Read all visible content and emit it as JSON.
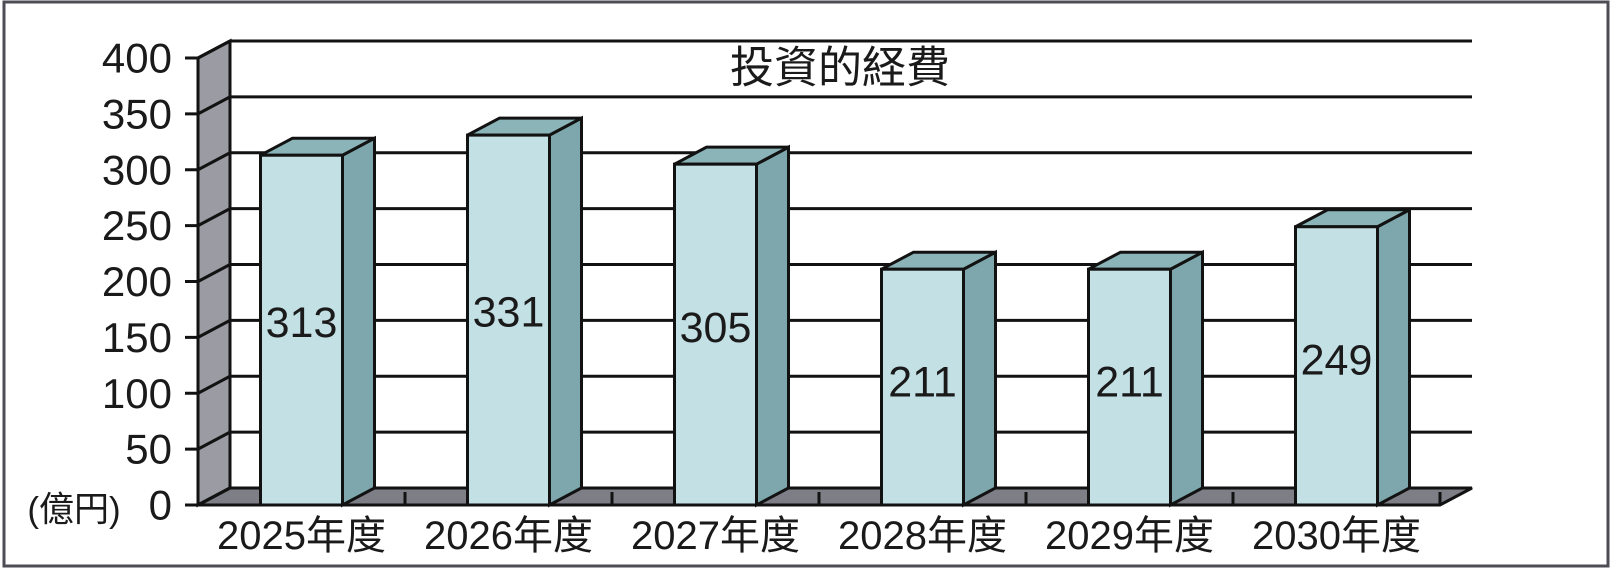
{
  "chart_data": {
    "type": "bar",
    "style": "3d-column",
    "title": "投資的経費",
    "unit_label": "(億円)",
    "xlabel": "",
    "ylabel": "(億円)",
    "categories": [
      "2025年度",
      "2026年度",
      "2027年度",
      "2028年度",
      "2029年度",
      "2030年度"
    ],
    "values": [
      313,
      331,
      305,
      211,
      211,
      249
    ],
    "y_ticks": [
      0,
      50,
      100,
      150,
      200,
      250,
      300,
      350,
      400
    ],
    "ylim": [
      0,
      400
    ],
    "grid": true,
    "legend": "none",
    "data_labels": "inside-center",
    "colors": {
      "bar_front": "#c3e0e5",
      "bar_top": "#8bb4b8",
      "bar_side": "#7da7ac",
      "wall": "#9b9ba3",
      "floor": "#7e7e86",
      "outline": "#121212",
      "gridline": "#121212",
      "text": "#1a1a1a",
      "frame": "#4d4d55",
      "background": "#ffffff"
    }
  }
}
